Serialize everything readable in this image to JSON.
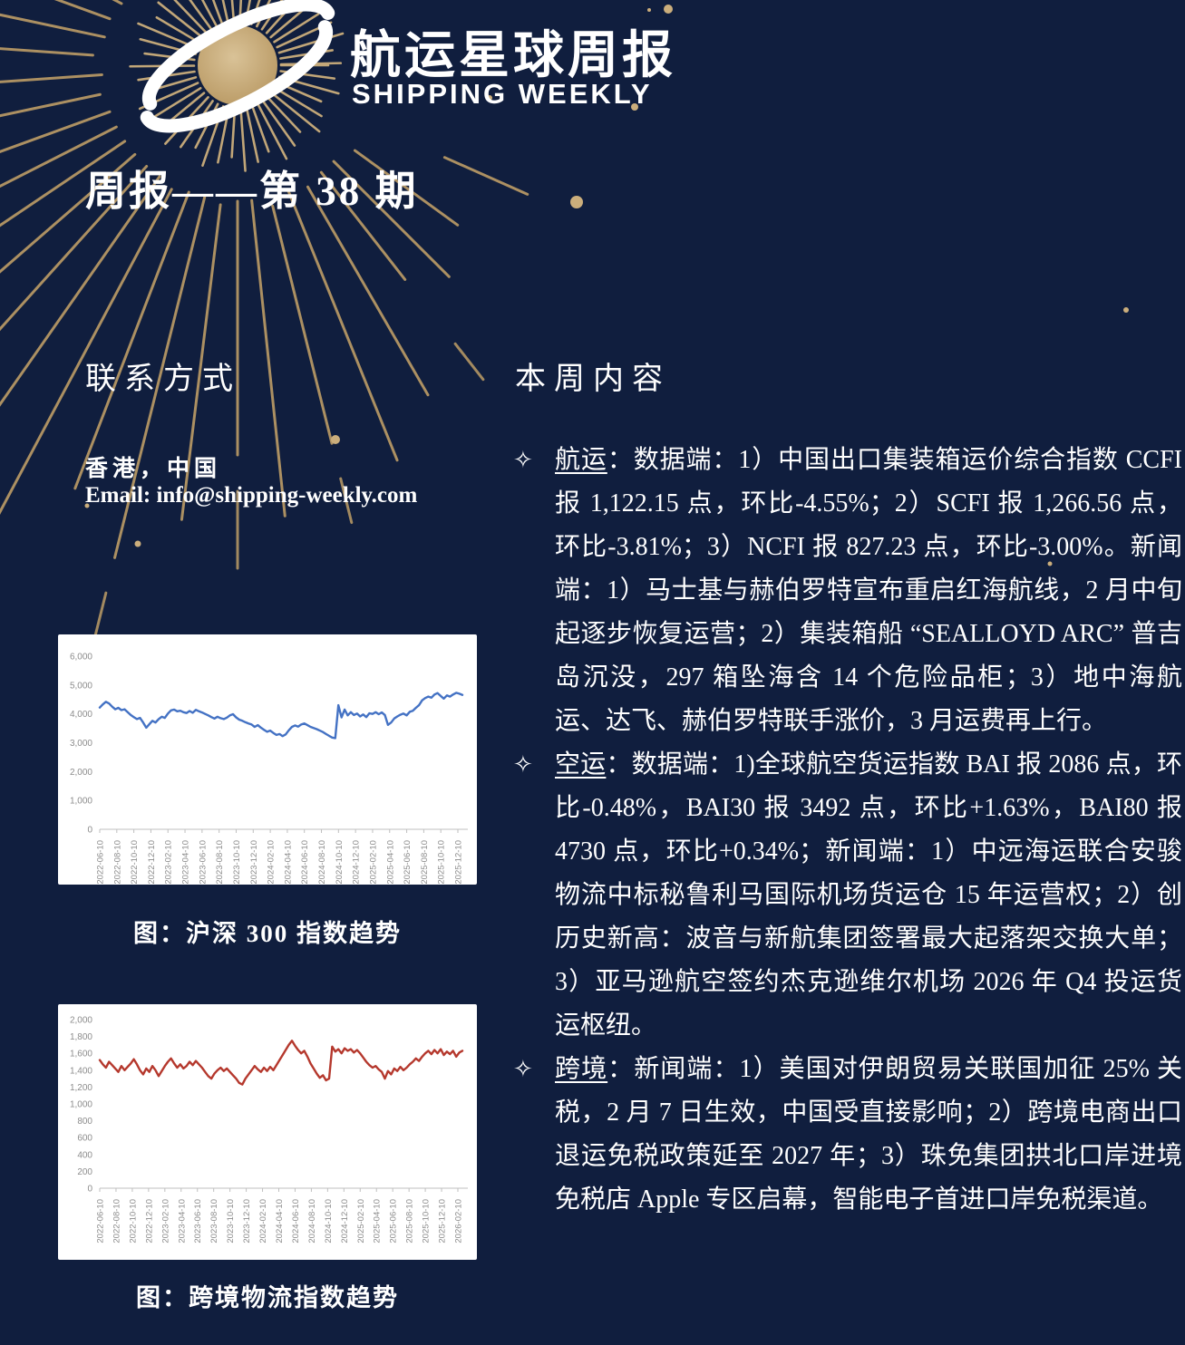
{
  "header": {
    "title_cn": "航运星球周报",
    "title_en": "SHIPPING WEEKLY",
    "issue": "周报——第 38 期"
  },
  "contact": {
    "heading": "联系方式",
    "location": "香港，中国",
    "email": "Email: info@shipping-weekly.com"
  },
  "content": {
    "heading": "本周内容",
    "bullets": [
      {
        "marker": "✧",
        "label": "航运",
        "text": "：数据端：1）中国出口集装箱运价综合指数 CCFI 报 1,122.15 点，环比-4.55%；2）SCFI 报 1,266.56 点，环比-3.81%；3）NCFI 报 827.23 点，环比-3.00%。新闻端：1）马士基与赫伯罗特宣布重启红海航线，2 月中旬起逐步恢复运营；2）集装箱船 “SEALLOYD ARC” 普吉岛沉没，297 箱坠海含 14 个危险品柜；3）地中海航运、达飞、赫伯罗特联手涨价，3 月运费再上行。"
      },
      {
        "marker": "✧",
        "label": "空运",
        "text": "：数据端：1)全球航空货运指数 BAI 报 2086 点，环比-0.48%，BAI30 报 3492 点，环比+1.63%，BAI80 报 4730 点，环比+0.34%；新闻端：1）中远海运联合安骏物流中标秘鲁利马国际机场货运仓 15 年运营权；2）创历史新高：波音与新航集团签署最大起落架交换大单；3）亚马逊航空签约杰克逊维尔机场 2026 年 Q4 投运货运枢纽。"
      },
      {
        "marker": "✧",
        "label": "跨境",
        "text": "：新闻端：1）美国对伊朗贸易关联国加征 25% 关税，2 月 7 日生效，中国受直接影响；2）跨境电商出口退运免税政策延至 2027 年；3）珠免集团拱北口岸进境免税店 Apple 专区启幕，智能电子首进口岸免税渠道。"
      }
    ]
  },
  "colors": {
    "background": "#101e3e",
    "gold": "#bd9d66",
    "gold_light": "#cbae7c",
    "text": "#ffffff",
    "axis_label": "#8c8c8c",
    "axis_line": "#bfbfbf"
  },
  "chart_data": [
    {
      "type": "line",
      "caption": "图：沪深 300 指数趋势",
      "line_color": "#4472c4",
      "ylim": [
        0,
        6000
      ],
      "y_ticks": [
        "6,000",
        "5,000",
        "4,000",
        "3,000",
        "2,000",
        "1,000",
        "0"
      ],
      "x_labels": [
        "2022-06-10",
        "2022-08-10",
        "2022-10-10",
        "2022-12-10",
        "2023-02-10",
        "2023-04-10",
        "2023-06-10",
        "2023-08-10",
        "2023-10-10",
        "2023-12-10",
        "2024-02-10",
        "2024-04-10",
        "2024-06-10",
        "2024-08-10",
        "2024-10-10",
        "2024-12-10",
        "2025-02-10",
        "2025-04-10",
        "2025-06-10",
        "2025-08-10",
        "2025-10-10",
        "2025-12-10"
      ],
      "values": [
        4220,
        4330,
        4420,
        4360,
        4250,
        4160,
        4210,
        4130,
        4160,
        4060,
        3960,
        3890,
        3820,
        3860,
        3700,
        3520,
        3640,
        3760,
        3700,
        3820,
        3900,
        3860,
        4010,
        4120,
        4150,
        4090,
        4110,
        4060,
        4030,
        4100,
        4040,
        4140,
        4090,
        4050,
        4000,
        3950,
        3890,
        3840,
        3900,
        3850,
        3820,
        3870,
        3950,
        3990,
        3880,
        3800,
        3760,
        3710,
        3670,
        3630,
        3550,
        3610,
        3520,
        3450,
        3380,
        3420,
        3340,
        3270,
        3300,
        3230,
        3290,
        3430,
        3550,
        3600,
        3560,
        3630,
        3670,
        3610,
        3550,
        3510,
        3470,
        3420,
        3370,
        3300,
        3240,
        3180,
        3160,
        4300,
        3880,
        4150,
        3950,
        4060,
        3960,
        4010,
        3910,
        3980,
        3890,
        4020,
        4000,
        4060,
        3990,
        4050,
        3960,
        3620,
        3700,
        3840,
        3910,
        3970,
        4010,
        3950,
        4070,
        4110,
        4210,
        4300,
        4470,
        4550,
        4600,
        4560,
        4670,
        4720,
        4620,
        4530,
        4640,
        4600,
        4670,
        4730,
        4700,
        4660
      ]
    },
    {
      "type": "line",
      "caption": "图：跨境物流指数趋势",
      "line_color": "#b5382d",
      "ylim": [
        0,
        2000
      ],
      "y_ticks": [
        "2,000",
        "1,800",
        "1,600",
        "1,400",
        "1,200",
        "1,000",
        "800",
        "600",
        "400",
        "200",
        "0"
      ],
      "x_labels": [
        "2022-06-10",
        "2022-08-10",
        "2022-10-10",
        "2022-12-10",
        "2023-02-10",
        "2023-04-10",
        "2023-06-10",
        "2023-08-10",
        "2023-10-10",
        "2023-12-10",
        "2024-02-10",
        "2024-04-10",
        "2024-06-10",
        "2024-08-10",
        "2024-10-10",
        "2024-12-10",
        "2025-02-10",
        "2025-04-10",
        "2025-06-10",
        "2025-08-10",
        "2025-10-10",
        "2025-12-10",
        "2026-02-10"
      ],
      "values": [
        1520,
        1470,
        1430,
        1500,
        1460,
        1420,
        1380,
        1450,
        1400,
        1440,
        1480,
        1530,
        1470,
        1400,
        1350,
        1420,
        1380,
        1450,
        1400,
        1330,
        1390,
        1450,
        1500,
        1540,
        1480,
        1430,
        1470,
        1420,
        1450,
        1500,
        1460,
        1510,
        1470,
        1430,
        1380,
        1330,
        1300,
        1360,
        1400,
        1430,
        1390,
        1420,
        1380,
        1340,
        1300,
        1250,
        1230,
        1300,
        1350,
        1400,
        1450,
        1410,
        1380,
        1430,
        1390,
        1440,
        1400,
        1460,
        1520,
        1580,
        1640,
        1700,
        1750,
        1690,
        1640,
        1600,
        1630,
        1560,
        1480,
        1420,
        1360,
        1310,
        1340,
        1280,
        1300,
        1680,
        1620,
        1650,
        1600,
        1660,
        1630,
        1650,
        1610,
        1640,
        1600,
        1550,
        1500,
        1460,
        1430,
        1450,
        1410,
        1380,
        1300,
        1390,
        1350,
        1420,
        1390,
        1440,
        1400,
        1430,
        1470,
        1500,
        1540,
        1510,
        1560,
        1600,
        1630,
        1590,
        1640,
        1600,
        1650,
        1580,
        1620,
        1590,
        1630,
        1560,
        1610,
        1630
      ]
    }
  ]
}
